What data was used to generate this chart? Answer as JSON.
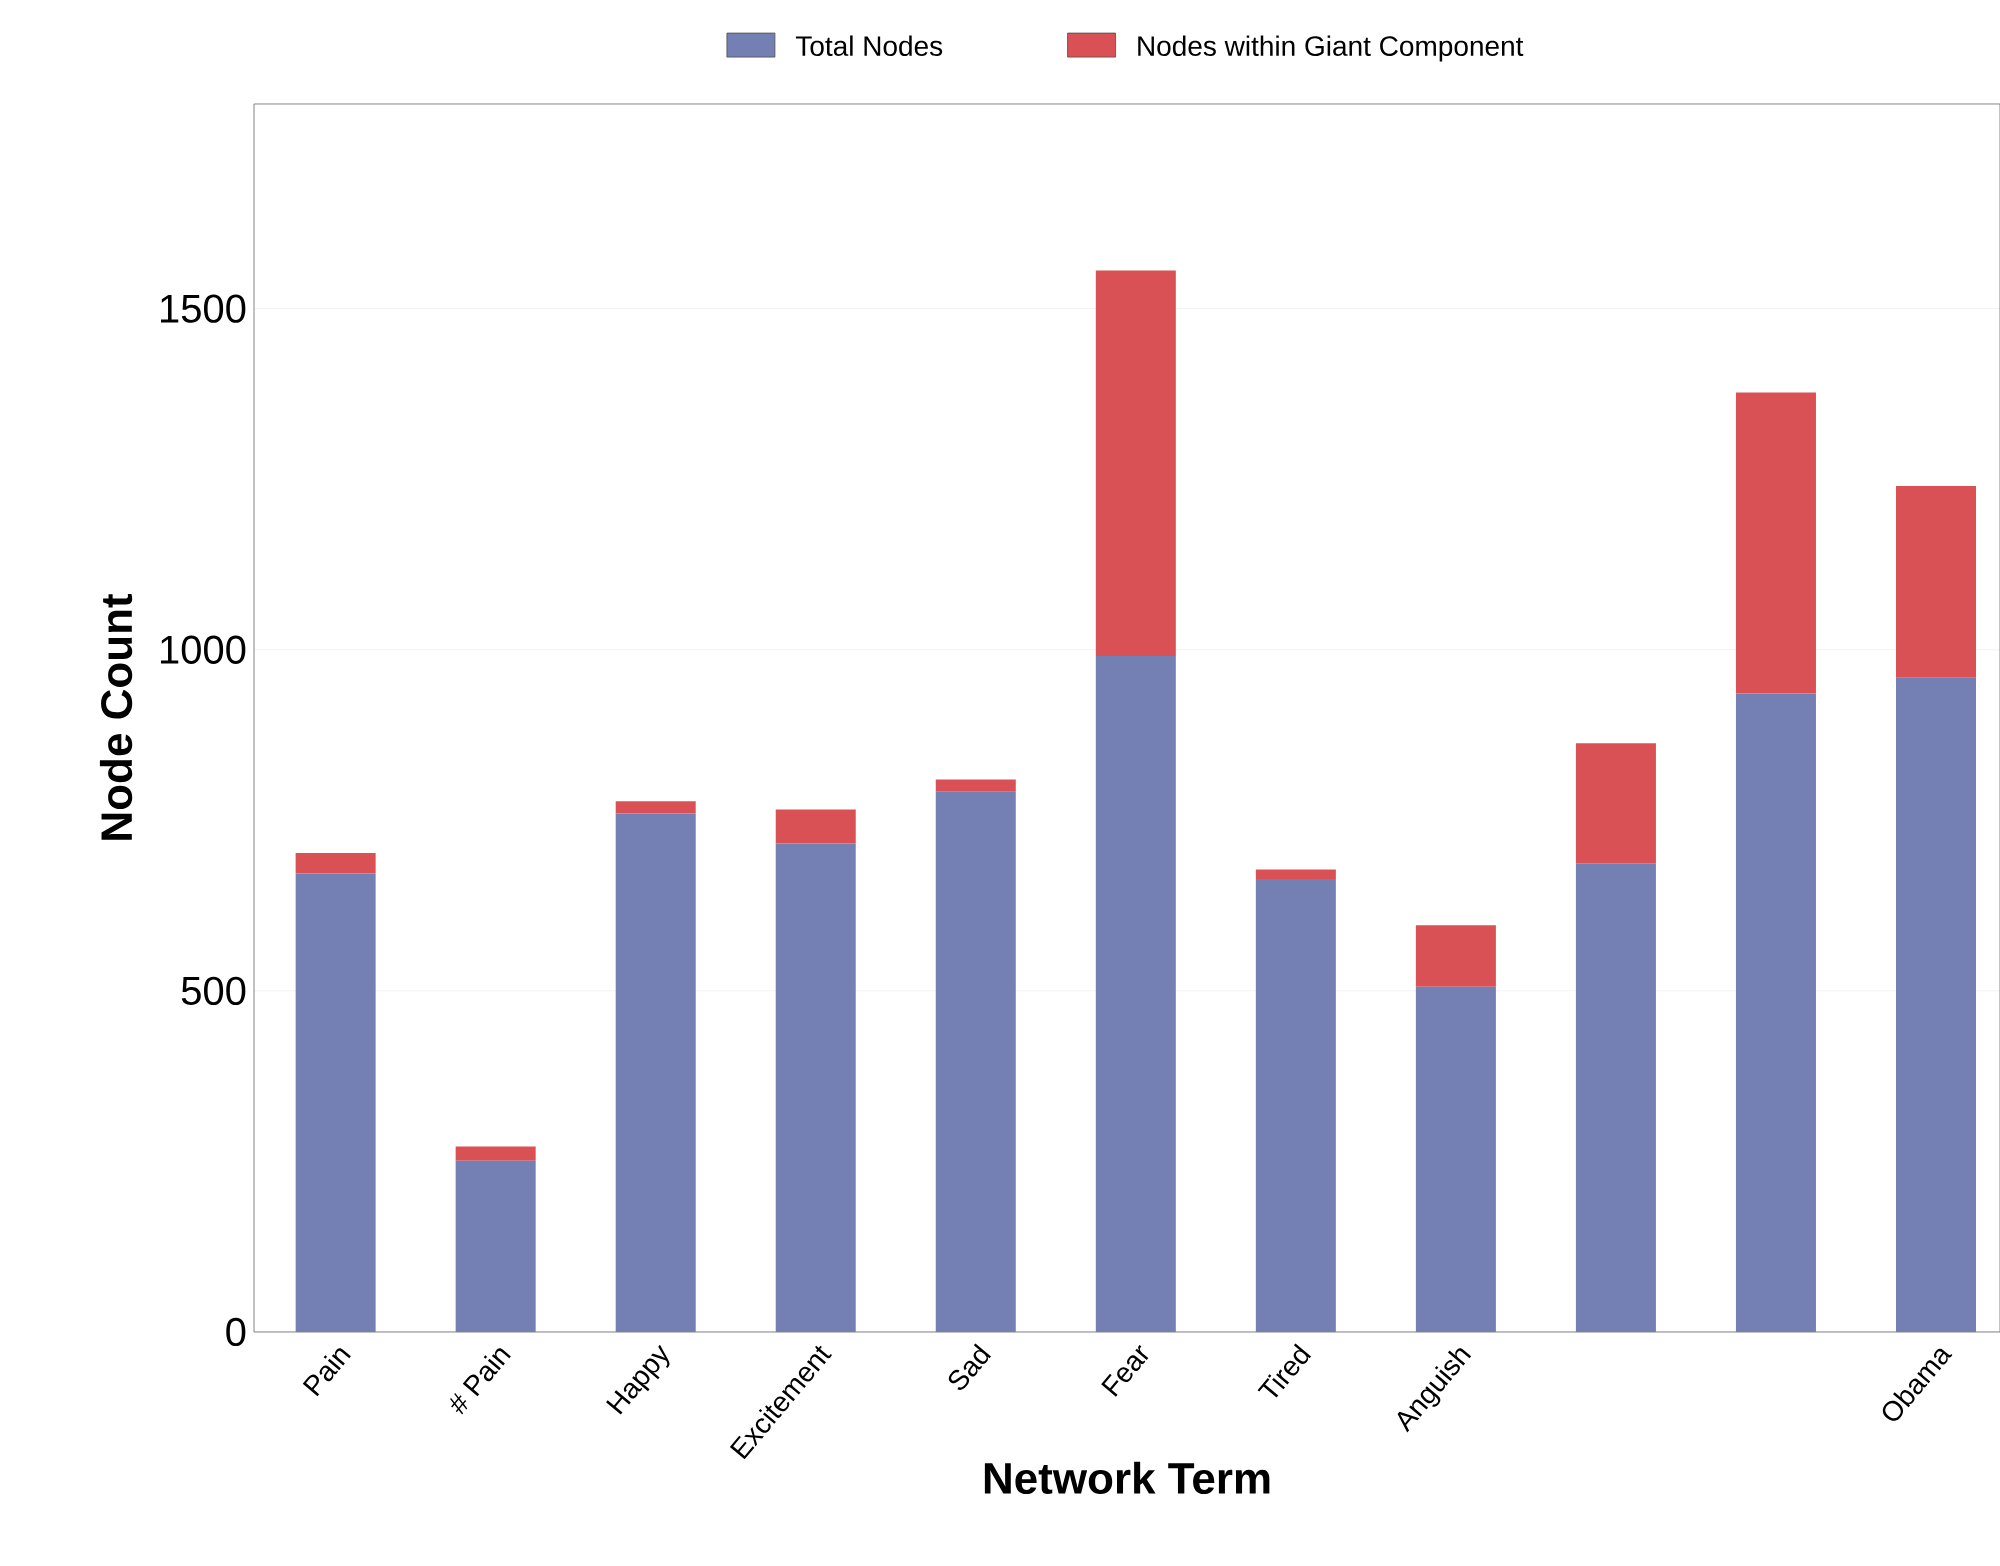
{
  "chart_data": {
    "type": "bar",
    "stacked": true,
    "xlabel": "Network Term",
    "ylabel": "Node Count",
    "categories": [
      "Pain",
      "# Pain",
      "Happy",
      "Excitement",
      "Sad",
      "Fear",
      "Tired",
      "Anguish",
      null,
      null,
      "Obama"
    ],
    "series": [
      {
        "name": "Total Nodes",
        "color": "#7480b3",
        "values": [
          672,
          251,
          760,
          716,
          792,
          991,
          664,
          506,
          687,
          936,
          959
        ]
      },
      {
        "name": "Nodes within Giant Component",
        "color": "#d95155",
        "values": [
          30,
          21,
          18,
          50,
          18,
          565,
          14,
          90,
          176,
          441,
          281
        ]
      }
    ],
    "ylim": [
      0,
      1800
    ],
    "yticks": [
      0,
      500,
      1000,
      1500
    ],
    "grid": "y",
    "legend": "top"
  }
}
